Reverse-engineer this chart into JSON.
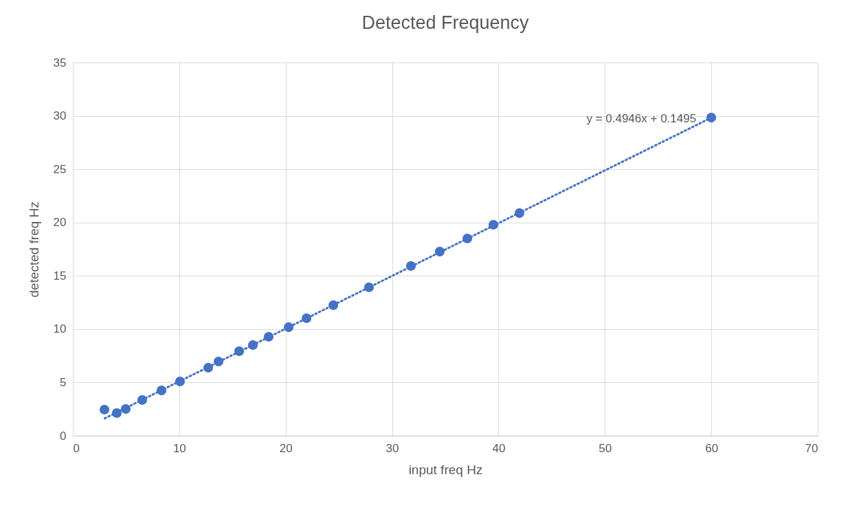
{
  "chart_data": {
    "type": "scatter",
    "title": "Detected Frequency",
    "xlabel": "input freq Hz",
    "ylabel": "detected freq Hz",
    "xlim": [
      0,
      70
    ],
    "xticks": [
      0,
      10,
      20,
      30,
      40,
      50,
      60,
      70
    ],
    "ylim": [
      0,
      35
    ],
    "yticks": [
      0,
      5,
      10,
      15,
      20,
      25,
      30,
      35
    ],
    "grid": true,
    "series": [
      {
        "color": "#4472c4",
        "marker": "circle",
        "x": [
          2.97,
          4.13,
          4.97,
          6.52,
          8.33,
          10.07,
          12.72,
          13.69,
          15.63,
          16.92,
          18.4,
          20.28,
          21.96,
          24.48,
          27.83,
          31.77,
          34.48,
          37.07,
          39.52,
          41.97,
          59.99
        ],
        "values": [
          2.45,
          2.13,
          2.51,
          3.35,
          4.25,
          5.09,
          6.38,
          6.96,
          7.93,
          8.51,
          9.28,
          10.18,
          11.02,
          12.25,
          13.92,
          15.92,
          17.27,
          18.5,
          19.79,
          20.88,
          29.84
        ]
      },
      {
        "type": "line",
        "color": "#4472c4",
        "line_style": "dotted",
        "x": [
          3,
          60
        ],
        "values": [
          1.63,
          29.83
        ]
      }
    ],
    "annotations": [
      {
        "text": "y = 0.4946x + 0.1495",
        "x": 60,
        "y": 29.83
      }
    ]
  }
}
